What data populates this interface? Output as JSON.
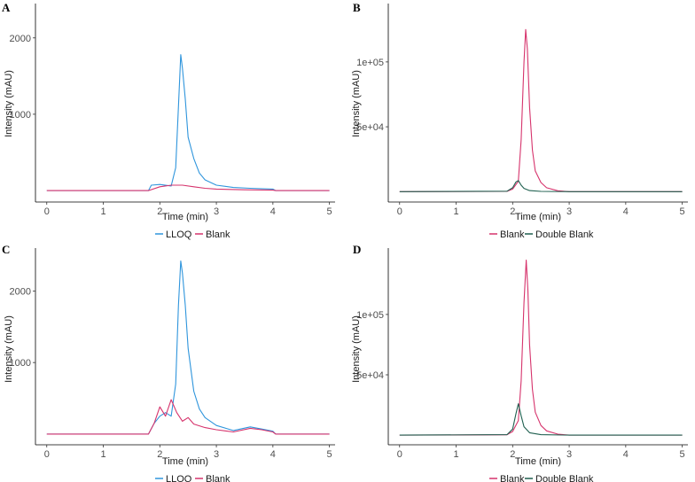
{
  "chart_data": [
    {
      "panel": "A",
      "type": "line",
      "title": "",
      "xlabel": "Time (min)",
      "ylabel": "Intensity (mAU)",
      "xlim": [
        -0.2,
        5.1
      ],
      "ylim": [
        -150,
        2450
      ],
      "x_ticks": [
        0,
        1,
        2,
        3,
        4,
        5
      ],
      "x_tick_labels": [
        "0",
        "1",
        "2",
        "3",
        "4",
        "5"
      ],
      "y_ticks": [
        1000,
        2000
      ],
      "y_tick_labels": [
        "1000",
        "2000"
      ],
      "grid": false,
      "legend_position": "bottom",
      "series": [
        {
          "name": "LLOQ",
          "color": "#2f95dc",
          "x": [
            0,
            1.8,
            1.85,
            2.0,
            2.2,
            2.28,
            2.33,
            2.37,
            2.4,
            2.45,
            2.5,
            2.6,
            2.7,
            2.8,
            3.0,
            3.3,
            3.6,
            4.0,
            4.05,
            5
          ],
          "y": [
            0,
            0,
            70,
            80,
            60,
            300,
            1100,
            1780,
            1600,
            1200,
            700,
            420,
            230,
            140,
            70,
            40,
            30,
            20,
            0,
            0
          ]
        },
        {
          "name": "Blank",
          "color": "#d6336c",
          "x": [
            0,
            1.8,
            2.0,
            2.2,
            2.4,
            2.6,
            2.8,
            3.0,
            3.5,
            4.0,
            4.05,
            5
          ],
          "y": [
            0,
            0,
            50,
            70,
            70,
            50,
            30,
            20,
            10,
            5,
            0,
            0
          ]
        }
      ]
    },
    {
      "panel": "B",
      "type": "line",
      "title": "",
      "xlabel": "Time (min)",
      "ylabel": "Intensity (mAU)",
      "xlim": [
        -0.2,
        5.1
      ],
      "ylim": [
        -8000,
        145000
      ],
      "x_ticks": [
        0,
        1,
        2,
        3,
        4,
        5
      ],
      "x_tick_labels": [
        "0",
        "1",
        "2",
        "3",
        "4",
        "5"
      ],
      "y_ticks": [
        50000,
        100000
      ],
      "y_tick_labels": [
        "5e+04",
        "1e+05"
      ],
      "grid": false,
      "legend_position": "bottom",
      "series": [
        {
          "name": "Blank",
          "color": "#d6336c",
          "x": [
            0,
            1.9,
            2.0,
            2.1,
            2.15,
            2.2,
            2.23,
            2.26,
            2.3,
            2.35,
            2.4,
            2.5,
            2.6,
            2.8,
            3.0,
            5
          ],
          "y": [
            0,
            200,
            2000,
            8000,
            40000,
            100000,
            125000,
            110000,
            65000,
            32000,
            16000,
            7000,
            3000,
            700,
            0,
            0
          ]
        },
        {
          "name": "Double Blank",
          "color": "#1f5f4f",
          "x": [
            0,
            1.9,
            2.0,
            2.06,
            2.1,
            2.15,
            2.2,
            2.3,
            2.5,
            3.0,
            5
          ],
          "y": [
            0,
            300,
            3000,
            7500,
            8500,
            5000,
            2500,
            800,
            200,
            0,
            0
          ]
        }
      ]
    },
    {
      "panel": "C",
      "type": "line",
      "title": "",
      "xlabel": "Time (min)",
      "ylabel": "Intensity (mAU)",
      "xlim": [
        -0.2,
        5.1
      ],
      "ylim": [
        -150,
        2600
      ],
      "x_ticks": [
        0,
        1,
        2,
        3,
        4,
        5
      ],
      "x_tick_labels": [
        "0",
        "1",
        "2",
        "3",
        "4",
        "5"
      ],
      "y_ticks": [
        1000,
        2000
      ],
      "y_tick_labels": [
        "1000",
        "2000"
      ],
      "grid": false,
      "legend_position": "bottom",
      "series": [
        {
          "name": "LLOQ",
          "color": "#2f95dc",
          "x": [
            0,
            1.8,
            1.9,
            2.0,
            2.1,
            2.2,
            2.28,
            2.33,
            2.37,
            2.4,
            2.45,
            2.5,
            2.6,
            2.7,
            2.8,
            3.0,
            3.3,
            3.6,
            3.8,
            4.0,
            4.05,
            5
          ],
          "y": [
            0,
            0,
            150,
            250,
            300,
            250,
            700,
            1800,
            2420,
            2250,
            1800,
            1200,
            600,
            350,
            230,
            120,
            50,
            100,
            70,
            40,
            0,
            0
          ]
        },
        {
          "name": "Blank",
          "color": "#d6336c",
          "x": [
            0,
            1.8,
            1.9,
            2.0,
            2.1,
            2.2,
            2.3,
            2.4,
            2.5,
            2.6,
            2.8,
            3.0,
            3.3,
            3.6,
            3.8,
            4.0,
            4.05,
            5
          ],
          "y": [
            0,
            0,
            150,
            380,
            250,
            480,
            300,
            180,
            230,
            140,
            90,
            60,
            30,
            80,
            60,
            30,
            0,
            0
          ]
        }
      ]
    },
    {
      "panel": "D",
      "type": "line",
      "title": "",
      "xlabel": "Time (min)",
      "ylabel": "Intensity (mAU)",
      "xlim": [
        -0.2,
        5.1
      ],
      "ylim": [
        -8000,
        155000
      ],
      "x_ticks": [
        0,
        1,
        2,
        3,
        4,
        5
      ],
      "x_tick_labels": [
        "0",
        "1",
        "2",
        "3",
        "4",
        "5"
      ],
      "y_ticks": [
        50000,
        100000
      ],
      "y_tick_labels": [
        "5e+04",
        "1e+05"
      ],
      "grid": false,
      "legend_position": "bottom",
      "series": [
        {
          "name": "Blank",
          "color": "#d6336c",
          "x": [
            0,
            1.9,
            2.0,
            2.1,
            2.15,
            2.2,
            2.24,
            2.27,
            2.3,
            2.35,
            2.4,
            2.5,
            2.6,
            2.8,
            3.0,
            5
          ],
          "y": [
            0,
            300,
            3000,
            12000,
            45000,
            110000,
            145000,
            120000,
            75000,
            38000,
            19000,
            8000,
            3500,
            800,
            0,
            0
          ]
        },
        {
          "name": "Double Blank",
          "color": "#1f5f4f",
          "x": [
            0,
            1.9,
            2.0,
            2.06,
            2.1,
            2.15,
            2.2,
            2.3,
            2.5,
            3.0,
            5
          ],
          "y": [
            0,
            400,
            5000,
            18000,
            26000,
            16000,
            7000,
            2000,
            400,
            0,
            0
          ]
        }
      ]
    }
  ]
}
